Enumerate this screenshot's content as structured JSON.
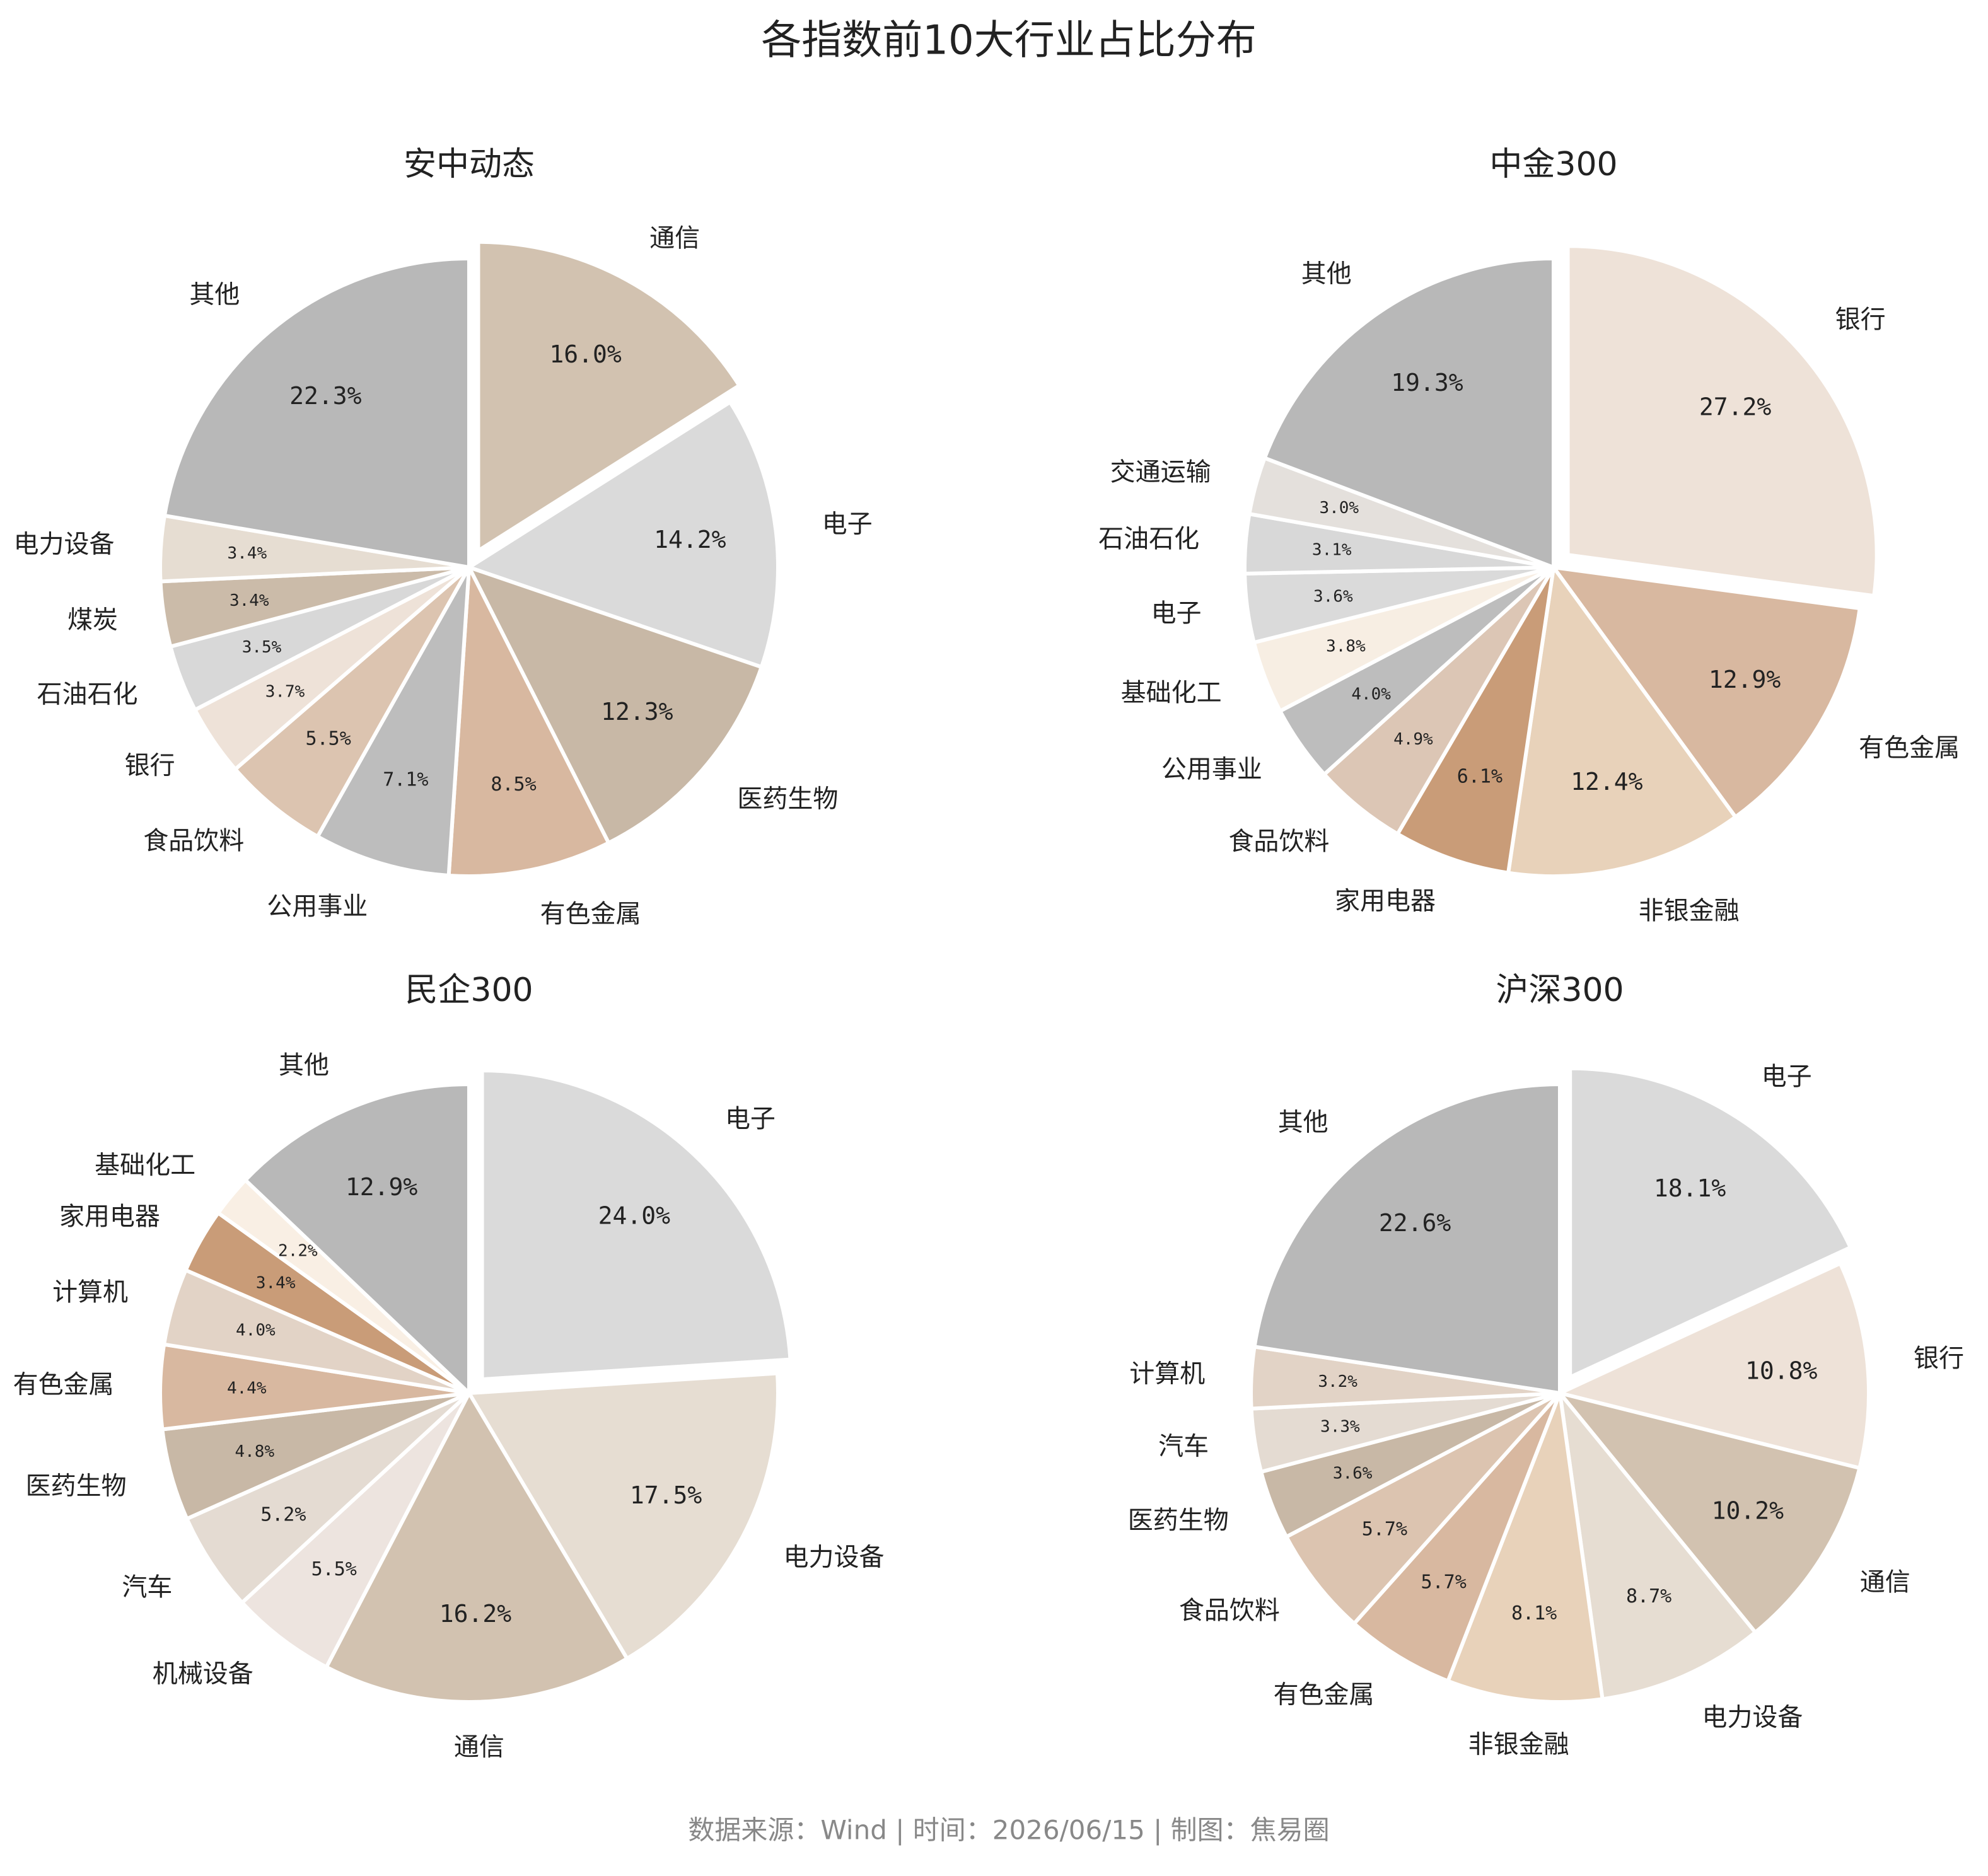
{
  "title": "各指数前10大行业占比分布",
  "footer": "数据来源：Wind | 时间：2026/06/15 | 制图：焦易圈",
  "chart_data": [
    {
      "type": "pie",
      "title": "安中动态",
      "categories": [
        "通信",
        "电子",
        "医药生物",
        "有色金属",
        "公用事业",
        "食品饮料",
        "银行",
        "石油石化",
        "煤炭",
        "电力设备",
        "其他"
      ],
      "values": [
        16.0,
        14.2,
        12.3,
        8.5,
        7.1,
        5.5,
        3.7,
        3.5,
        3.4,
        3.4,
        22.3
      ],
      "value_labels": [
        "16.0%",
        "14.2%",
        "12.3%",
        "8.5%",
        "7.1%",
        "5.5%",
        "3.7%",
        "3.5%",
        "3.4%",
        "3.4%",
        "22.3%"
      ],
      "colors": [
        "#d2c2b0",
        "#dadada",
        "#c8b8a6",
        "#d8b8a0",
        "#bdbdbd",
        "#dcc4b0",
        "#eee2d8",
        "#d8d8d8",
        "#cbbba9",
        "#e6ddd2",
        "#b8b8b8"
      ]
    },
    {
      "type": "pie",
      "title": "中金300",
      "categories": [
        "银行",
        "有色金属",
        "非银金融",
        "家用电器",
        "食品饮料",
        "公用事业",
        "基础化工",
        "电子",
        "石油石化",
        "交通运输",
        "其他"
      ],
      "values": [
        27.2,
        12.9,
        12.4,
        6.1,
        4.9,
        4.0,
        3.8,
        3.6,
        3.1,
        3.0,
        19.3
      ],
      "value_labels": [
        "27.2%",
        "12.9%",
        "12.4%",
        "6.1%",
        "4.9%",
        "4.0%",
        "3.8%",
        "3.6%",
        "3.1%",
        "3.0%",
        "19.3%"
      ],
      "colors": [
        "#eee2d8",
        "#d8b8a0",
        "#e8d2ba",
        "#c99c78",
        "#dcc6b5",
        "#bdbdbd",
        "#f7eee3",
        "#dadada",
        "#d8d8d8",
        "#e4e0dc",
        "#b8b8b8"
      ]
    },
    {
      "type": "pie",
      "title": "民企300",
      "categories": [
        "电子",
        "电力设备",
        "通信",
        "机械设备",
        "汽车",
        "医药生物",
        "有色金属",
        "计算机",
        "家用电器",
        "基础化工",
        "其他"
      ],
      "values": [
        24.0,
        17.5,
        16.2,
        5.5,
        5.2,
        4.8,
        4.4,
        4.0,
        3.4,
        2.2,
        12.9
      ],
      "value_labels": [
        "24.0%",
        "17.5%",
        "16.2%",
        "5.5%",
        "5.2%",
        "4.8%",
        "4.4%",
        "4.0%",
        "3.4%",
        "2.2%",
        "12.9%"
      ],
      "colors": [
        "#dadada",
        "#e6ddd2",
        "#d2c2b0",
        "#ede4df",
        "#e4dbd2",
        "#c8b8a6",
        "#d8b8a0",
        "#e2d3c6",
        "#c99c78",
        "#f9efe4",
        "#b8b8b8"
      ]
    },
    {
      "type": "pie",
      "title": "沪深300",
      "categories": [
        "电子",
        "银行",
        "通信",
        "电力设备",
        "非银金融",
        "有色金属",
        "食品饮料",
        "医药生物",
        "汽车",
        "计算机",
        "其他"
      ],
      "values": [
        18.1,
        10.8,
        10.2,
        8.7,
        8.1,
        5.7,
        5.7,
        3.6,
        3.3,
        3.2,
        22.6
      ],
      "value_labels": [
        "18.1%",
        "10.8%",
        "10.2%",
        "8.7%",
        "8.1%",
        "5.7%",
        "5.7%",
        "3.6%",
        "3.3%",
        "3.2%",
        "22.6%"
      ],
      "colors": [
        "#dadada",
        "#eee2d8",
        "#d2c2b0",
        "#e6ddd2",
        "#e8d2ba",
        "#d8b8a0",
        "#dcc4b0",
        "#c8b8a6",
        "#e4dbd2",
        "#e2d3c6",
        "#b8b8b8"
      ]
    }
  ]
}
